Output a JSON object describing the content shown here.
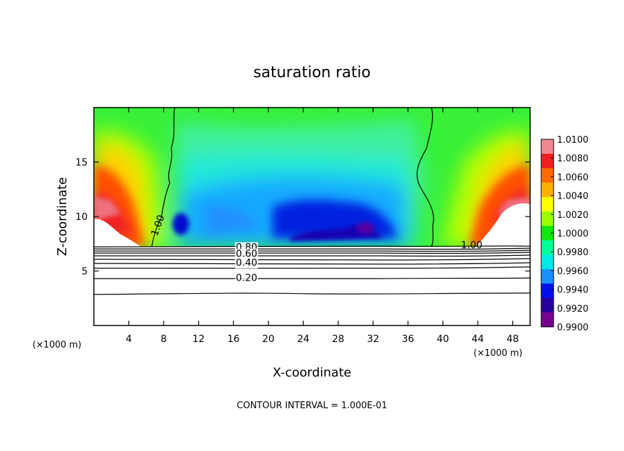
{
  "chart_data": {
    "type": "heatmap",
    "title": "saturation ratio",
    "xlabel": "X-coordinate",
    "ylabel": "Z-coordinate",
    "x_unit": "(×1000 m)",
    "footer": "CONTOUR INTERVAL = 1.000E-01",
    "xlim": [
      0,
      50
    ],
    "ylim": [
      0,
      20
    ],
    "x_ticks": [
      "4",
      "8",
      "12",
      "16",
      "20",
      "24",
      "28",
      "32",
      "36",
      "40",
      "44",
      "48"
    ],
    "x_tick_values": [
      4,
      8,
      12,
      16,
      20,
      24,
      28,
      32,
      36,
      40,
      44,
      48
    ],
    "y_ticks": [
      "5",
      "10",
      "15"
    ],
    "y_tick_values": [
      5,
      10,
      15
    ],
    "colorbar": {
      "labels": [
        "1.0100",
        "1.0080",
        "1.0060",
        "1.0040",
        "1.0020",
        "1.0000",
        "0.9980",
        "0.9960",
        "0.9940",
        "0.9920",
        "0.9900"
      ],
      "values": [
        1.01,
        1.008,
        1.006,
        1.004,
        1.002,
        1.0,
        0.998,
        0.996,
        0.994,
        0.992,
        0.99
      ],
      "colors": [
        "#f08890",
        "#f02020",
        "#ff6a00",
        "#ffb000",
        "#ffff00",
        "#98ff00",
        "#10e810",
        "#00ff98",
        "#00e8e8",
        "#1890ff",
        "#0010e8",
        "#2800a0",
        "#780090"
      ]
    },
    "contour_labels": [
      {
        "text": "0.80",
        "x": 17.5,
        "z": 7.2
      },
      {
        "text": "0.60",
        "x": 17.5,
        "z": 6.6
      },
      {
        "text": "0.40",
        "x": 17.5,
        "z": 5.8
      },
      {
        "text": "0.20",
        "x": 17.5,
        "z": 4.4
      },
      {
        "text": "1.00",
        "x": 7.3,
        "z": 9.2
      },
      {
        "text": "1.00",
        "x": 43.3,
        "z": 7.4
      }
    ]
  }
}
